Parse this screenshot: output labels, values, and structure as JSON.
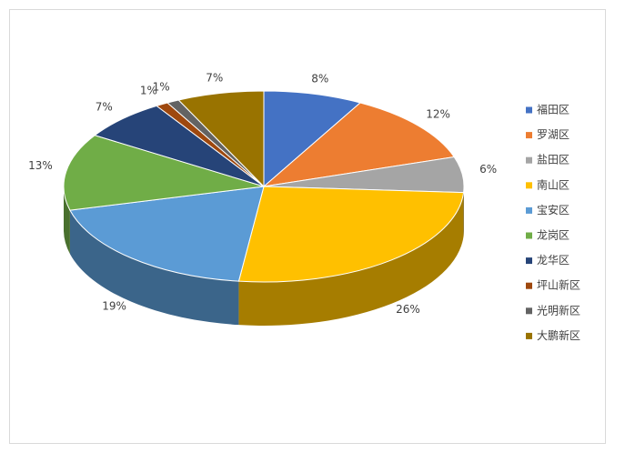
{
  "chart_data": {
    "type": "pie3d",
    "categories": [
      "福田区",
      "罗湖区",
      "盐田区",
      "南山区",
      "宝安区",
      "龙岗区",
      "龙华区",
      "坪山新区",
      "光明新区",
      "大鹏新区"
    ],
    "values": [
      8,
      12,
      6,
      26,
      19,
      13,
      7,
      1,
      1,
      7
    ],
    "value_labels": [
      "8%",
      "12%",
      "6%",
      "26%",
      "19%",
      "13%",
      "7%",
      "1%",
      "1%",
      "7%"
    ],
    "colors": [
      "#4472c4",
      "#ed7d31",
      "#a5a5a5",
      "#ffc000",
      "#5b9bd5",
      "#70ad47",
      "#264478",
      "#9e480e",
      "#636363",
      "#997300"
    ],
    "legend": "right"
  }
}
